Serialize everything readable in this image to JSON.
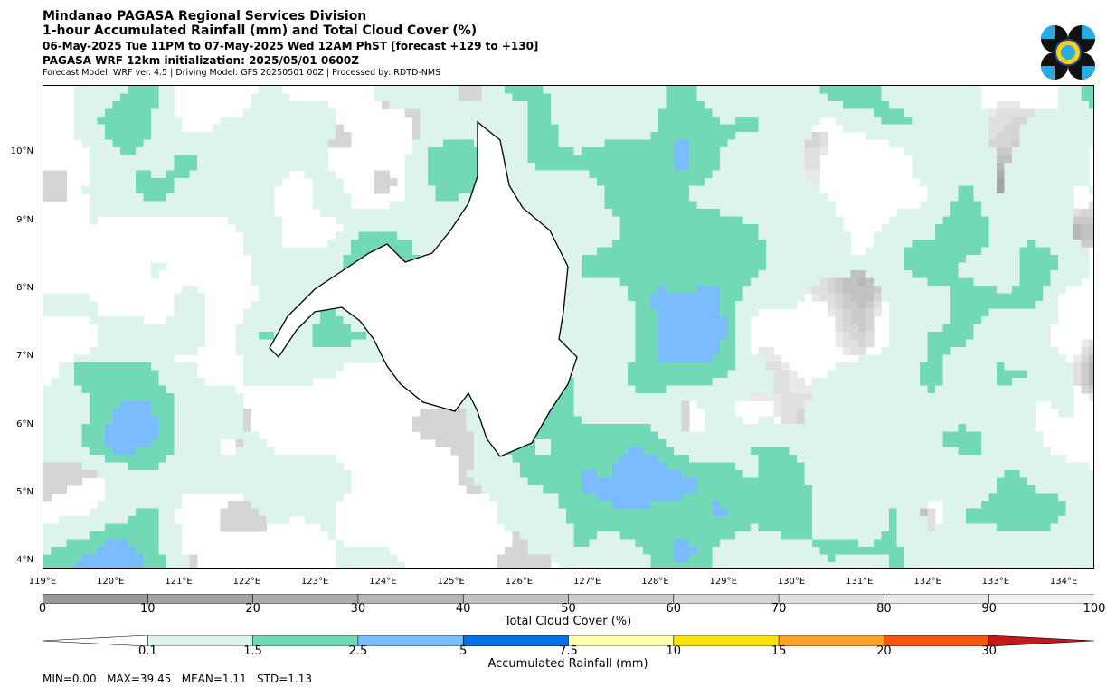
{
  "header": {
    "line1": "Mindanao PAGASA Regional Services Division",
    "line2": "1-hour Accumulated Rainfall (mm) and Total Cloud Cover (%)",
    "line3": "06-May-2025 Tue 11PM to 07-May-2025 Wed 12AM PhST [forecast +129 to +130]",
    "line4": "PAGASA WRF 12km initialization: 2025/05/01 0600Z",
    "line5": "Forecast Model: WRF ver. 4.5 | Driving Model: GFS 20250501 00Z | Processed by: RDTD-NMS"
  },
  "map": {
    "lat_labels": [
      "10°N",
      "9°N",
      "8°N",
      "7°N",
      "6°N",
      "5°N",
      "4°N"
    ],
    "lat_values": [
      10,
      9,
      8,
      7,
      6,
      5,
      4
    ],
    "lon_labels": [
      "119°E",
      "120°E",
      "121°E",
      "122°E",
      "123°E",
      "124°E",
      "125°E",
      "126°E",
      "127°E",
      "128°E",
      "129°E",
      "130°E",
      "131°E",
      "132°E",
      "133°E",
      "134°E"
    ],
    "lon_values": [
      119,
      120,
      121,
      122,
      123,
      124,
      125,
      126,
      127,
      128,
      129,
      130,
      131,
      132,
      133,
      134
    ],
    "lat_range": [
      3.9,
      11.0
    ],
    "lon_range": [
      119.0,
      134.45
    ]
  },
  "cloud_colorbar": {
    "label": "Total Cloud Cover (%)",
    "ticks": [
      "0",
      "10",
      "20",
      "30",
      "40",
      "50",
      "60",
      "70",
      "80",
      "90",
      "100"
    ],
    "colors": [
      "#999999",
      "#a3a3a3",
      "#adadad",
      "#b7b7b7",
      "#c1c1c1",
      "#cbcbcb",
      "#d5d5d5",
      "#dfdfdf",
      "#e9e9e9",
      "#f3f3f3"
    ]
  },
  "rain_colorbar": {
    "label": "Accumulated Rainfall (mm)",
    "ticks": [
      "0.1",
      "1.5",
      "2.5",
      "5",
      "7.5",
      "10",
      "15",
      "20",
      "30"
    ],
    "colors": [
      "#ddf4ec",
      "#72d9b7",
      "#7bbcff",
      "#0072e5",
      "#ffffae",
      "#f9e20c",
      "#f9a227",
      "#f25714",
      "#c4191b"
    ]
  },
  "stats": {
    "text": "MIN=0.00   MAX=39.45   MEAN=1.11   STD=1.13"
  }
}
